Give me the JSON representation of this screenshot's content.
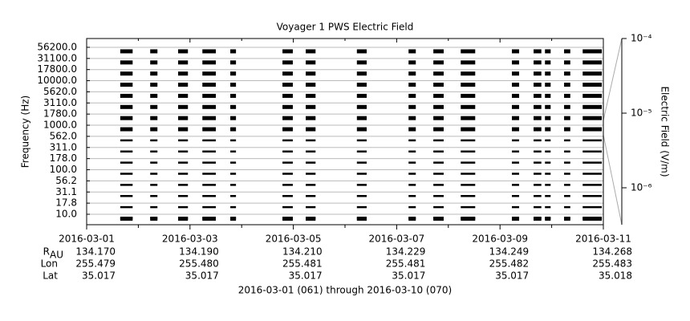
{
  "chart_data": {
    "type": "interval-spectrum",
    "title": "Voyager 1 PWS Electric Field",
    "ylabel": "Frequency (Hz)",
    "categories": [
      "10.0",
      "17.8",
      "31.1",
      "56.2",
      "100.0",
      "178.0",
      "311.0",
      "562.0",
      "1000.0",
      "1780.0",
      "3110.0",
      "5620.0",
      "10000.0",
      "17800.0",
      "31100.0",
      "56200.0"
    ],
    "xlim": [
      0,
      10
    ],
    "xticks": [
      {
        "value": 0,
        "label": "2016-03-01"
      },
      {
        "value": 2,
        "label": "2016-03-03"
      },
      {
        "value": 4,
        "label": "2016-03-05"
      },
      {
        "value": 6,
        "label": "2016-03-07"
      },
      {
        "value": 8,
        "label": "2016-03-09"
      },
      {
        "value": 10,
        "label": "2016-03-11"
      }
    ],
    "xminorticks": [
      1,
      3,
      5,
      7,
      9
    ],
    "intervals": [
      [
        0.65,
        0.89
      ],
      [
        1.23,
        1.37
      ],
      [
        1.77,
        1.96
      ],
      [
        2.24,
        2.5
      ],
      [
        2.78,
        2.89
      ],
      [
        3.79,
        3.99
      ],
      [
        4.24,
        4.43
      ],
      [
        5.23,
        5.42
      ],
      [
        6.23,
        6.37
      ],
      [
        6.71,
        6.91
      ],
      [
        7.24,
        7.52
      ],
      [
        8.23,
        8.37
      ],
      [
        8.65,
        8.8
      ],
      [
        8.87,
        8.98
      ],
      [
        9.24,
        9.36
      ],
      [
        9.6,
        9.97
      ]
    ],
    "color": "#000000",
    "grid": true,
    "y2label": "Electric Field (V/m)",
    "y2scale": "log",
    "y2lim": [
      3.2e-07,
      0.0001
    ],
    "y2ticks": [
      {
        "value": 0.0001,
        "label": "10⁻⁴"
      },
      {
        "value": 1e-05,
        "label": "10⁻⁵"
      },
      {
        "value": 1e-06,
        "label": "10⁻⁶"
      }
    ],
    "ephemeris": [
      {
        "label": "R",
        "label_sub": "AU",
        "values": [
          "134.170",
          "134.190",
          "134.210",
          "134.229",
          "134.249",
          "134.268"
        ]
      },
      {
        "label": "Lon",
        "values": [
          "255.479",
          "255.480",
          "255.481",
          "255.481",
          "255.482",
          "255.483"
        ]
      },
      {
        "label": "Lat",
        "values": [
          "35.017",
          "35.017",
          "35.017",
          "35.017",
          "35.017",
          "35.018"
        ]
      }
    ],
    "xlabel": "2016-03-01 (061) through 2016-03-10 (070)"
  }
}
